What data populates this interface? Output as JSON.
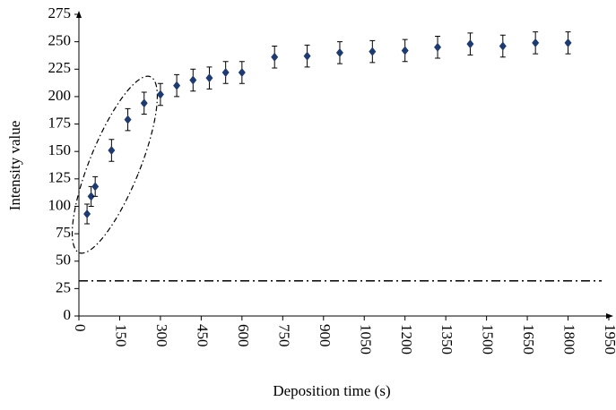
{
  "chart_data": {
    "type": "scatter",
    "x_label": "Deposition time (s)",
    "y_label": "Intensity value",
    "series": [
      {
        "color": "#1f3a6e",
        "x": [
          30,
          45,
          60,
          120,
          180,
          240,
          300,
          360,
          420,
          480,
          540,
          600,
          720,
          840,
          960,
          1080,
          1200,
          1320,
          1440,
          1560,
          1680,
          1800
        ],
        "values": [
          93,
          109,
          118,
          151,
          179,
          194,
          202,
          210,
          215,
          217,
          222,
          222,
          236,
          237,
          240,
          241,
          242,
          245,
          248,
          246,
          249,
          249
        ],
        "errors": [
          9,
          9,
          9,
          10,
          10,
          10,
          10,
          10,
          10,
          10,
          10,
          10,
          10,
          10,
          10,
          10,
          10,
          10,
          10,
          10,
          10,
          10
        ]
      }
    ],
    "threshold": 32,
    "xlim": [
      0,
      1950
    ],
    "xticks": [
      0,
      150,
      300,
      450,
      600,
      750,
      900,
      1050,
      1200,
      1350,
      1500,
      1650,
      1800,
      1950
    ],
    "ylim": [
      0,
      275
    ],
    "yticks": [
      0,
      25,
      50,
      75,
      100,
      125,
      150,
      175,
      200,
      225,
      250,
      275
    ]
  }
}
